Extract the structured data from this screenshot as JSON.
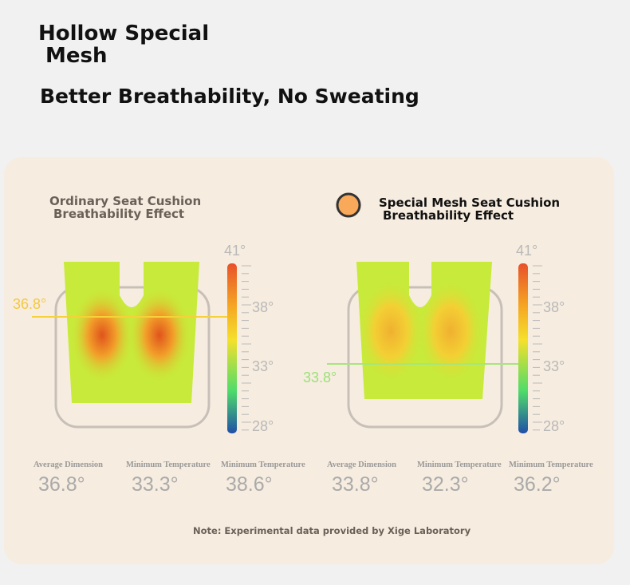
{
  "header": {
    "title_lines": [
      "Hollow Special",
      "Mesh"
    ],
    "subtitle": "Better Breathability, No Sweating"
  },
  "panels": [
    {
      "title_lines": [
        "Ordinary Seat Cushion",
        "Breathability Effect"
      ],
      "marker": "36.8°",
      "scale": [
        "41°",
        "38°",
        "33°",
        "28°"
      ],
      "stats": [
        {
          "label": "Average Dimension",
          "value": "36.8°"
        },
        {
          "label": "Minimum Temperature",
          "value": "33.3°"
        },
        {
          "label": "Minimum Temperature",
          "value": "38.6°"
        }
      ]
    },
    {
      "title_lines": [
        "Special Mesh Seat Cushion",
        "Breathability Effect"
      ],
      "marker": "33.8°",
      "scale": [
        "41°",
        "38°",
        "33°",
        "28°"
      ],
      "stats": [
        {
          "label": "Average Dimension",
          "value": "33.8°"
        },
        {
          "label": "Minimum Temperature",
          "value": "32.3°"
        },
        {
          "label": "Minimum Temperature",
          "value": "36.2°"
        }
      ]
    }
  ],
  "note": "Note: Experimental data provided by Xige Laboratory"
}
